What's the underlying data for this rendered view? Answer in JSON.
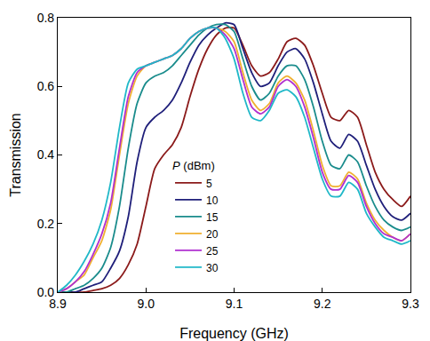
{
  "chart_data": {
    "type": "line",
    "x_label": "Frequency (GHz)",
    "y_label": "Transmission",
    "legend_title": "P (dBm)",
    "legend": "lower center",
    "xlim": [
      8.9,
      9.3
    ],
    "ylim": [
      0,
      0.8
    ],
    "xticks": [
      8.9,
      {
        "value": 9,
        "label": "9.0"
      },
      9.1,
      9.2,
      9.3
    ],
    "yticks": [
      {
        "value": 0,
        "label": "0.0"
      },
      0.2,
      0.4,
      0.6,
      0.8
    ],
    "x": [
      8.9,
      8.91,
      8.92,
      8.93,
      8.94,
      8.95,
      8.96,
      8.97,
      8.98,
      8.99,
      9.0,
      9.01,
      9.02,
      9.03,
      9.04,
      9.05,
      9.06,
      9.07,
      9.08,
      9.09,
      9.1,
      9.11,
      9.12,
      9.13,
      9.14,
      9.15,
      9.16,
      9.17,
      9.18,
      9.19,
      9.2,
      9.21,
      9.22,
      9.23,
      9.24,
      9.25,
      9.26,
      9.27,
      9.28,
      9.29,
      9.3
    ],
    "series": [
      {
        "name": "5",
        "color": "#8b1a1a",
        "values": [
          0,
          0,
          0,
          0,
          0.005,
          0.01,
          0.02,
          0.04,
          0.08,
          0.14,
          0.25,
          0.36,
          0.4,
          0.43,
          0.48,
          0.57,
          0.65,
          0.71,
          0.75,
          0.77,
          0.77,
          0.72,
          0.66,
          0.63,
          0.64,
          0.68,
          0.73,
          0.74,
          0.72,
          0.66,
          0.58,
          0.51,
          0.5,
          0.53,
          0.51,
          0.43,
          0.35,
          0.3,
          0.27,
          0.25,
          0.28
        ]
      },
      {
        "name": "10",
        "color": "#1f1f7a",
        "values": [
          0,
          0,
          0,
          0.01,
          0.02,
          0.03,
          0.07,
          0.12,
          0.22,
          0.38,
          0.48,
          0.51,
          0.53,
          0.56,
          0.61,
          0.67,
          0.72,
          0.75,
          0.77,
          0.785,
          0.78,
          0.71,
          0.64,
          0.6,
          0.61,
          0.66,
          0.7,
          0.71,
          0.68,
          0.61,
          0.52,
          0.44,
          0.42,
          0.46,
          0.44,
          0.37,
          0.3,
          0.25,
          0.22,
          0.21,
          0.23
        ]
      },
      {
        "name": "15",
        "color": "#1a8c8c",
        "values": [
          0,
          0,
          0.01,
          0.02,
          0.04,
          0.07,
          0.13,
          0.25,
          0.42,
          0.55,
          0.61,
          0.63,
          0.64,
          0.66,
          0.69,
          0.72,
          0.75,
          0.77,
          0.78,
          0.78,
          0.76,
          0.68,
          0.6,
          0.56,
          0.58,
          0.63,
          0.66,
          0.66,
          0.62,
          0.54,
          0.44,
          0.37,
          0.36,
          0.4,
          0.38,
          0.31,
          0.25,
          0.21,
          0.19,
          0.18,
          0.19
        ]
      },
      {
        "name": "20",
        "color": "#f0b030",
        "values": [
          0,
          0.01,
          0.03,
          0.05,
          0.1,
          0.15,
          0.24,
          0.4,
          0.55,
          0.63,
          0.66,
          0.67,
          0.68,
          0.69,
          0.71,
          0.74,
          0.76,
          0.77,
          0.77,
          0.76,
          0.73,
          0.64,
          0.56,
          0.53,
          0.55,
          0.61,
          0.63,
          0.61,
          0.56,
          0.47,
          0.37,
          0.31,
          0.31,
          0.35,
          0.33,
          0.26,
          0.21,
          0.18,
          0.16,
          0.15,
          0.17
        ]
      },
      {
        "name": "25",
        "color": "#b030d0",
        "values": [
          0,
          0.01,
          0.03,
          0.06,
          0.11,
          0.17,
          0.26,
          0.42,
          0.57,
          0.64,
          0.66,
          0.67,
          0.68,
          0.69,
          0.71,
          0.74,
          0.76,
          0.77,
          0.77,
          0.75,
          0.71,
          0.62,
          0.54,
          0.52,
          0.54,
          0.6,
          0.62,
          0.6,
          0.54,
          0.45,
          0.35,
          0.3,
          0.3,
          0.34,
          0.32,
          0.25,
          0.2,
          0.17,
          0.16,
          0.15,
          0.17
        ]
      },
      {
        "name": "30",
        "color": "#20b8c8",
        "values": [
          0,
          0.02,
          0.05,
          0.09,
          0.14,
          0.21,
          0.32,
          0.48,
          0.61,
          0.65,
          0.66,
          0.67,
          0.68,
          0.69,
          0.71,
          0.74,
          0.76,
          0.77,
          0.77,
          0.74,
          0.68,
          0.58,
          0.51,
          0.5,
          0.53,
          0.58,
          0.59,
          0.57,
          0.51,
          0.42,
          0.33,
          0.28,
          0.28,
          0.32,
          0.3,
          0.23,
          0.19,
          0.16,
          0.15,
          0.14,
          0.15
        ]
      }
    ]
  }
}
